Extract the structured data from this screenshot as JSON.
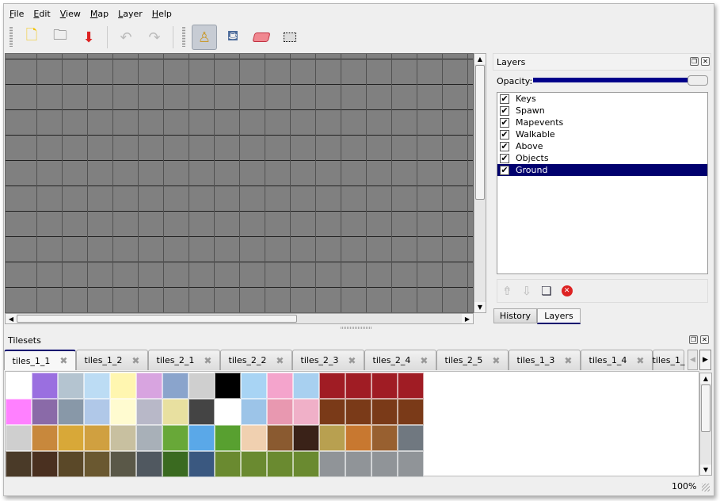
{
  "menu": [
    "File",
    "Edit",
    "View",
    "Map",
    "Layer",
    "Help"
  ],
  "toolbar": {
    "new": "new-file-icon",
    "open": "open-folder-icon",
    "save": "save-icon",
    "undo": "undo-icon",
    "redo": "redo-icon",
    "stamp": "stamp-brush-icon",
    "fill": "bucket-fill-icon",
    "eraser": "eraser-icon",
    "select": "rectangle-select-icon"
  },
  "layers_panel": {
    "title": "Layers",
    "opacity_label": "Opacity:",
    "opacity": 1.0,
    "items": [
      {
        "name": "Keys",
        "visible": true
      },
      {
        "name": "Spawn",
        "visible": true
      },
      {
        "name": "Mapevents",
        "visible": true
      },
      {
        "name": "Walkable",
        "visible": true
      },
      {
        "name": "Above",
        "visible": true
      },
      {
        "name": "Objects",
        "visible": true
      },
      {
        "name": "Ground",
        "visible": true,
        "selected": true
      }
    ],
    "tabs": [
      "History",
      "Layers"
    ],
    "active_tab": "Layers"
  },
  "tilesets": {
    "title": "Tilesets",
    "tabs": [
      "tiles_1_1",
      "tiles_1_2",
      "tiles_2_1",
      "tiles_2_2",
      "tiles_2_3",
      "tiles_2_4",
      "tiles_2_5",
      "tiles_1_3",
      "tiles_1_4",
      "tiles_1_"
    ],
    "active": "tiles_1_1",
    "tile_palette": [
      [
        "#ffffff",
        "#9a6fe0",
        "#b4c4d0",
        "#bcdcf4",
        "#fff6b0",
        "#d8a4e0",
        "#8aa4cc",
        "#cfcfcf",
        "#000000",
        "#a8d4f4",
        "#f4a4cc",
        "#a8d0f0",
        "#a01c24",
        "#a01c24",
        "#a01c24",
        "#a01c24"
      ],
      [
        "#ff80ff",
        "#8a6aa8",
        "#8898a8",
        "#b0c8e8",
        "#fffbd0",
        "#b8b8c8",
        "#e8e0a0",
        "#444444",
        "#ffffff",
        "#9cc4e8",
        "#e898b0",
        "#f0b0c8",
        "#7a3a18",
        "#7a3a18",
        "#7a3a18",
        "#7a3a18"
      ],
      [
        "#cfcfcf",
        "#c8883c",
        "#d8a838",
        "#d0a040",
        "#c8c0a0",
        "#a8b0b8",
        "#68a838",
        "#5aa8e8",
        "#58a030",
        "#f0d0b0",
        "#8a5a30",
        "#3a2218",
        "#b8a050",
        "#c87830",
        "#986030",
        "#707880"
      ],
      [
        "#4a3a28",
        "#4a3020",
        "#5a4828",
        "#6a5830",
        "#5a5848",
        "#505860",
        "#3a6a20",
        "#3a5880",
        "#6a8a30",
        "#6a8a30",
        "#6a8a30",
        "#6a8a30",
        "#909498",
        "#909498",
        "#909498",
        "#909498"
      ]
    ]
  },
  "status": {
    "zoom": "100%"
  }
}
